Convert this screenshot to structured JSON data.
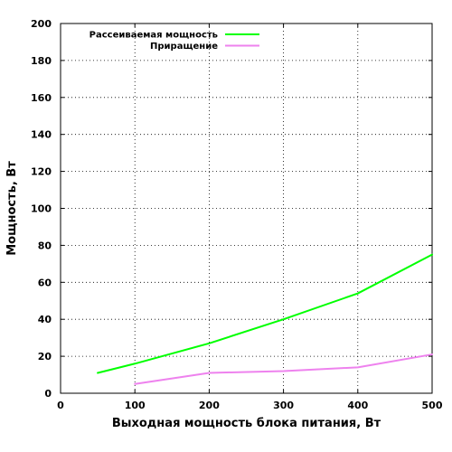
{
  "chart_data": {
    "type": "line",
    "title": "",
    "xlabel": "Выходная мощность блока питания, Вт",
    "ylabel": "Мощность, Вт",
    "xlim": [
      0,
      500
    ],
    "ylim": [
      0,
      200
    ],
    "xticks": [
      0,
      100,
      200,
      300,
      400,
      500
    ],
    "yticks": [
      0,
      20,
      40,
      60,
      80,
      100,
      120,
      140,
      160,
      180,
      200
    ],
    "grid": true,
    "legend_position": "top-left",
    "series": [
      {
        "name": "Рассеиваемая мощность",
        "color": "#00ff00",
        "x": [
          50,
          100,
          200,
          300,
          400,
          500
        ],
        "y": [
          11,
          16,
          27,
          40,
          54,
          75
        ]
      },
      {
        "name": "Приращение",
        "color": "#ee82ee",
        "x": [
          100,
          200,
          300,
          400,
          500
        ],
        "y": [
          5,
          11,
          12,
          14,
          21
        ]
      }
    ]
  }
}
